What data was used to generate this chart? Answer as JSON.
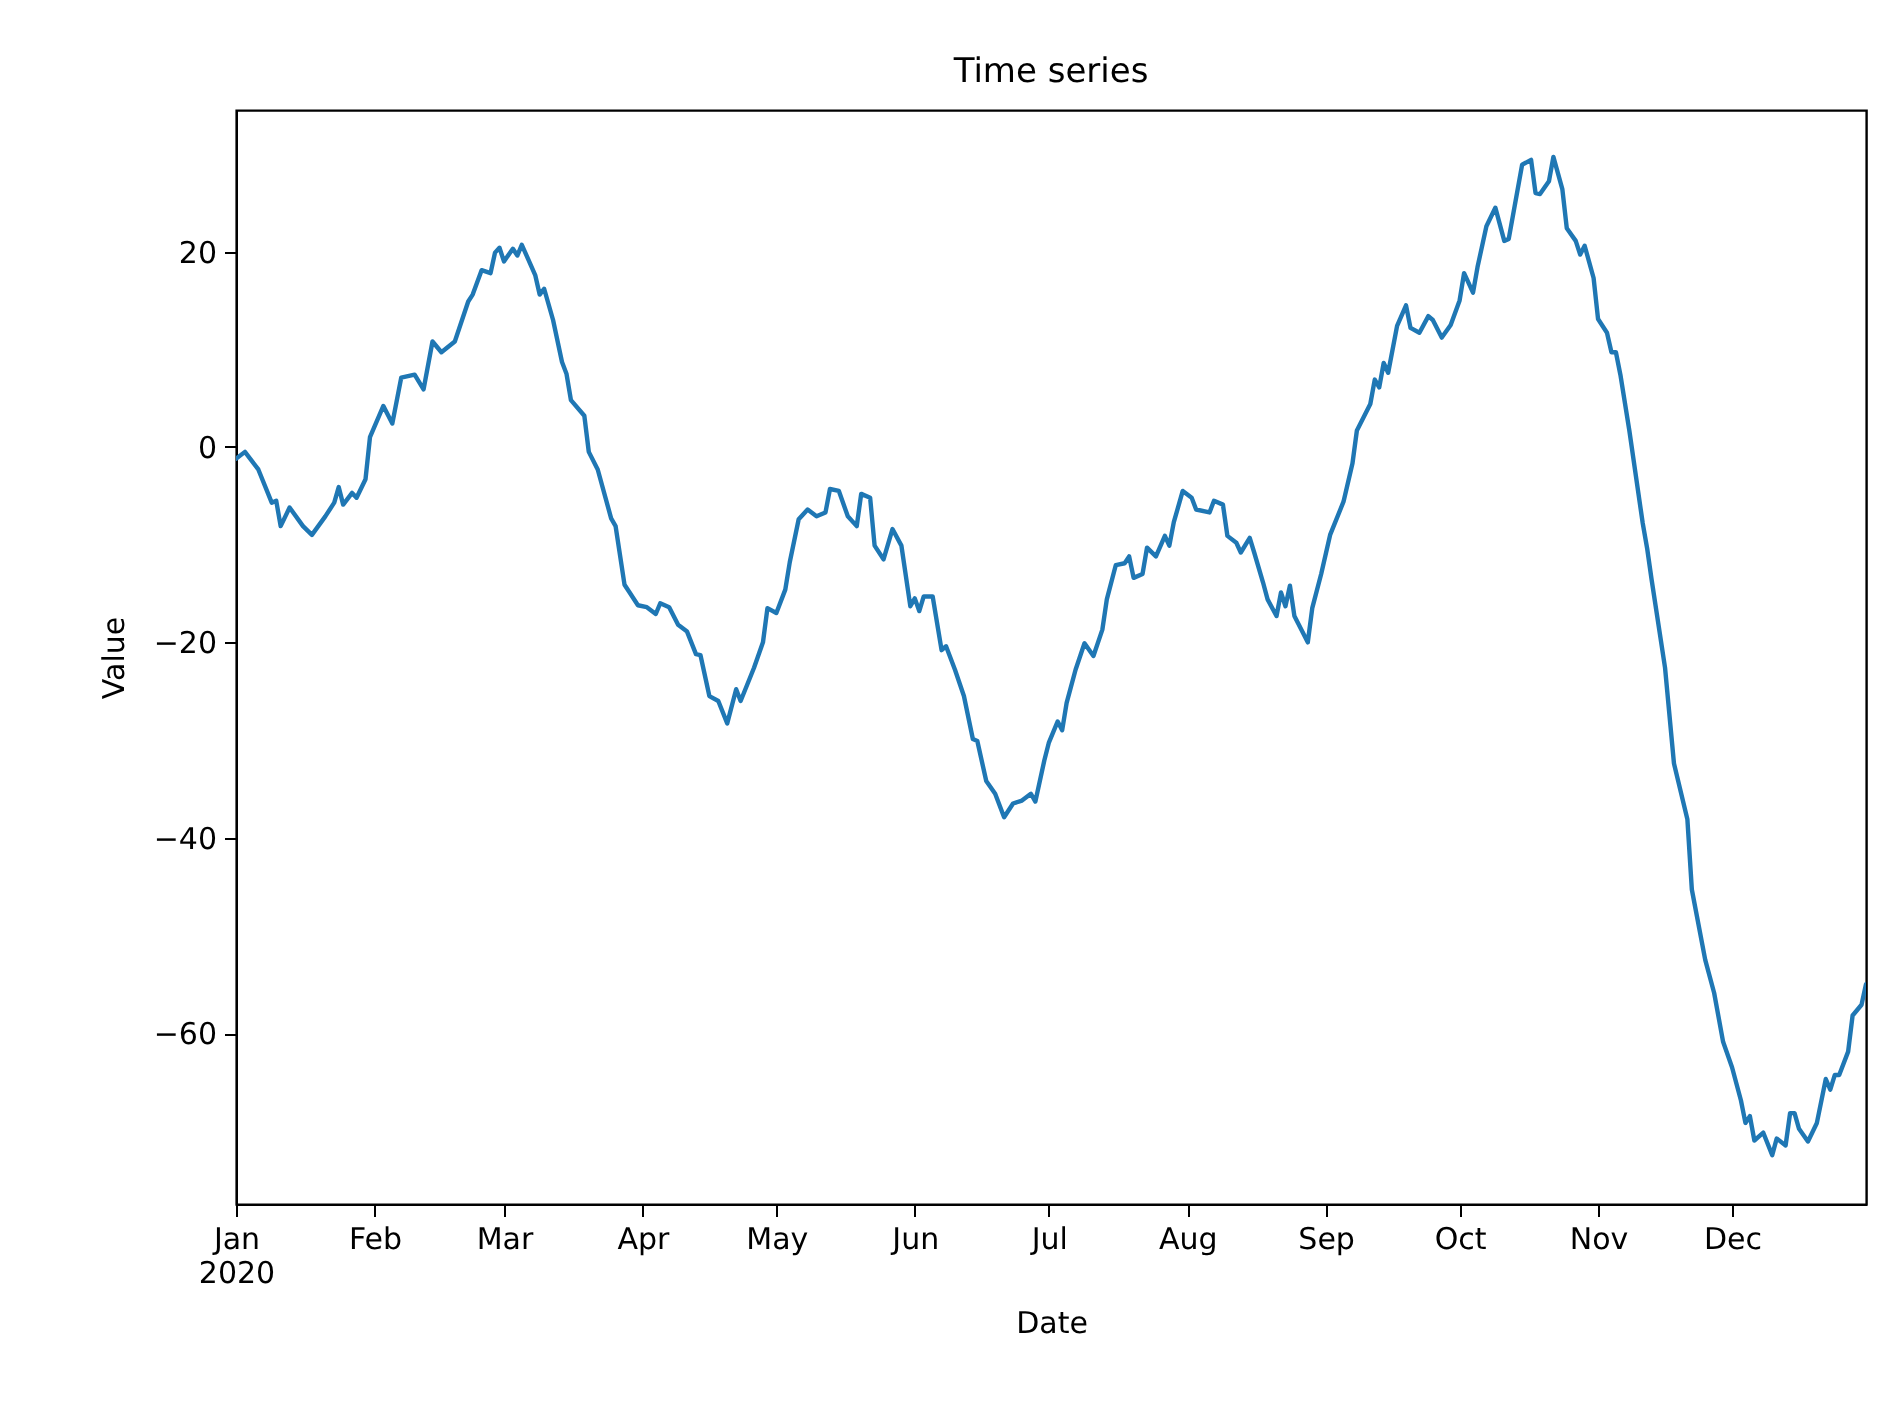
{
  "chart_data": {
    "type": "line",
    "title": "Time series",
    "xlabel": "Date",
    "ylabel": "Value",
    "x": [
      "2020-01-01",
      "2020-01-03",
      "2020-01-06",
      "2020-01-09",
      "2020-01-10",
      "2020-01-11",
      "2020-01-13",
      "2020-01-16",
      "2020-01-18",
      "2020-01-21",
      "2020-01-23",
      "2020-01-24",
      "2020-01-25",
      "2020-01-27",
      "2020-01-28",
      "2020-01-30",
      "2020-01-31",
      "2020-02-03",
      "2020-02-05",
      "2020-02-07",
      "2020-02-10",
      "2020-02-12",
      "2020-02-14",
      "2020-02-16",
      "2020-02-19",
      "2020-02-22",
      "2020-02-23",
      "2020-02-25",
      "2020-02-27",
      "2020-02-28",
      "2020-02-29",
      "2020-03-01",
      "2020-03-03",
      "2020-03-04",
      "2020-03-05",
      "2020-03-08",
      "2020-03-09",
      "2020-03-10",
      "2020-03-12",
      "2020-03-14",
      "2020-03-15",
      "2020-03-16",
      "2020-03-19",
      "2020-03-20",
      "2020-03-22",
      "2020-03-25",
      "2020-03-26",
      "2020-03-28",
      "2020-03-29",
      "2020-03-31",
      "2020-04-02",
      "2020-04-04",
      "2020-04-05",
      "2020-04-07",
      "2020-04-09",
      "2020-04-11",
      "2020-04-13",
      "2020-04-14",
      "2020-04-16",
      "2020-04-18",
      "2020-04-20",
      "2020-04-22",
      "2020-04-23",
      "2020-04-26",
      "2020-04-28",
      "2020-04-29",
      "2020-05-01",
      "2020-05-03",
      "2020-05-04",
      "2020-05-06",
      "2020-05-08",
      "2020-05-10",
      "2020-05-12",
      "2020-05-13",
      "2020-05-15",
      "2020-05-17",
      "2020-05-19",
      "2020-05-20",
      "2020-05-22",
      "2020-05-23",
      "2020-05-25",
      "2020-05-27",
      "2020-05-29",
      "2020-05-31",
      "2020-06-01",
      "2020-06-02",
      "2020-06-03",
      "2020-06-05",
      "2020-06-07",
      "2020-06-08",
      "2020-06-10",
      "2020-06-12",
      "2020-06-14",
      "2020-06-15",
      "2020-06-17",
      "2020-06-19",
      "2020-06-21",
      "2020-06-23",
      "2020-06-25",
      "2020-06-27",
      "2020-06-28",
      "2020-06-30",
      "2020-07-01",
      "2020-07-03",
      "2020-07-04",
      "2020-07-05",
      "2020-07-07",
      "2020-07-09",
      "2020-07-11",
      "2020-07-13",
      "2020-07-14",
      "2020-07-16",
      "2020-07-18",
      "2020-07-19",
      "2020-07-20",
      "2020-07-22",
      "2020-07-23",
      "2020-07-25",
      "2020-07-27",
      "2020-07-28",
      "2020-07-29",
      "2020-07-31",
      "2020-08-02",
      "2020-08-03",
      "2020-08-06",
      "2020-08-07",
      "2020-08-09",
      "2020-08-10",
      "2020-08-12",
      "2020-08-13",
      "2020-08-15",
      "2020-08-16",
      "2020-08-18",
      "2020-08-19",
      "2020-08-21",
      "2020-08-22",
      "2020-08-23",
      "2020-08-24",
      "2020-08-25",
      "2020-08-28",
      "2020-08-29",
      "2020-08-31",
      "2020-09-02",
      "2020-09-05",
      "2020-09-07",
      "2020-09-08",
      "2020-09-11",
      "2020-09-12",
      "2020-09-13",
      "2020-09-14",
      "2020-09-15",
      "2020-09-17",
      "2020-09-19",
      "2020-09-20",
      "2020-09-22",
      "2020-09-24",
      "2020-09-25",
      "2020-09-27",
      "2020-09-29",
      "2020-10-01",
      "2020-10-02",
      "2020-10-04",
      "2020-10-05",
      "2020-10-07",
      "2020-10-09",
      "2020-10-11",
      "2020-10-12",
      "2020-10-15",
      "2020-10-17",
      "2020-10-18",
      "2020-10-19",
      "2020-10-21",
      "2020-10-22",
      "2020-10-24",
      "2020-10-25",
      "2020-10-27",
      "2020-10-28",
      "2020-10-29",
      "2020-10-31",
      "2020-11-01",
      "2020-11-03",
      "2020-11-04",
      "2020-11-05",
      "2020-11-06",
      "2020-11-08",
      "2020-11-11",
      "2020-11-12",
      "2020-11-13",
      "2020-11-16",
      "2020-11-18",
      "2020-11-21",
      "2020-11-22",
      "2020-11-25",
      "2020-11-27",
      "2020-11-29",
      "2020-12-01",
      "2020-12-03",
      "2020-12-04",
      "2020-12-05",
      "2020-12-06",
      "2020-12-08",
      "2020-12-10",
      "2020-12-11",
      "2020-12-13",
      "2020-12-14",
      "2020-12-15",
      "2020-12-16",
      "2020-12-18",
      "2020-12-20",
      "2020-12-22",
      "2020-12-23",
      "2020-12-24",
      "2020-12-25",
      "2020-12-27",
      "2020-12-28",
      "2020-12-30",
      "2020-12-31"
    ],
    "series": [
      {
        "color": "#1f77b4",
        "values": [
          -1.2,
          -0.5,
          -2.3,
          -5.7,
          -5.5,
          -8.1,
          -6.2,
          -8.1,
          -9,
          -7.1,
          -5.7,
          -4.1,
          -5.9,
          -4.7,
          -5.2,
          -3.3,
          1,
          4.2,
          2.4,
          7.1,
          7.4,
          5.9,
          10.8,
          9.7,
          10.8,
          14.9,
          15.6,
          18.1,
          17.8,
          19.9,
          20.4,
          19,
          20.3,
          19.6,
          20.7,
          17.6,
          15.6,
          16.2,
          13,
          8.7,
          7.5,
          4.8,
          3.2,
          -0.5,
          -2.3,
          -7.3,
          -8.1,
          -14.1,
          -14.8,
          -16.2,
          -16.4,
          -17.1,
          -16,
          -16.4,
          -18.2,
          -18.9,
          -21.2,
          -21.3,
          -25.5,
          -26,
          -28.3,
          -24.8,
          -26,
          -22.6,
          -20,
          -16.5,
          -17,
          -14.6,
          -11.8,
          -7.4,
          -6.4,
          -7.1,
          -6.7,
          -4.3,
          -4.5,
          -7.1,
          -8.1,
          -4.8,
          -5.2,
          -10.1,
          -11.5,
          -8.4,
          -10.1,
          -16.3,
          -15.5,
          -16.8,
          -15.3,
          -15.3,
          -20.8,
          -20.4,
          -22.8,
          -25.5,
          -29.9,
          -30.1,
          -34.2,
          -35.5,
          -37.9,
          -36.5,
          -36.2,
          -35.5,
          -36.3,
          -32.1,
          -30.3,
          -28.1,
          -29,
          -26.2,
          -22.8,
          -20.1,
          -21.4,
          -18.7,
          -15.6,
          -12.1,
          -11.9,
          -11.2,
          -13.4,
          -13,
          -10.3,
          -11.2,
          -9.1,
          -10.1,
          -7.7,
          -4.5,
          -5.2,
          -6.4,
          -6.7,
          -5.5,
          -5.9,
          -9.1,
          -9.8,
          -10.8,
          -9.3,
          -10.8,
          -13.9,
          -15.6,
          -17.3,
          -14.9,
          -16.3,
          -14.2,
          -17.3,
          -20,
          -16.5,
          -13,
          -9,
          -5.6,
          -1.7,
          1.7,
          4.4,
          6.9,
          6.1,
          8.6,
          7.6,
          12.4,
          14.5,
          12.2,
          11.7,
          13.4,
          13,
          11.2,
          12.5,
          15,
          17.8,
          15.8,
          18.4,
          22.6,
          24.5,
          21.1,
          21.3,
          28.9,
          29.4,
          26,
          25.9,
          27.2,
          29.7,
          26.4,
          22.4,
          21.1,
          19.7,
          20.6,
          17.3,
          13.1,
          11.7,
          9.7,
          9.7,
          7.4,
          1.7,
          -7.8,
          -10.4,
          -13.6,
          -22.6,
          -32.4,
          -38.1,
          -45.3,
          -52.5,
          -55.9,
          -60.9,
          -63.5,
          -66.9,
          -69.2,
          -68.5,
          -71,
          -70.2,
          -72.5,
          -70.8,
          -71.5,
          -68.2,
          -68.2,
          -69.8,
          -71.1,
          -69.2,
          -64.7,
          -65.8,
          -64.3,
          -64.3,
          -61.9,
          -58.2,
          -57.1,
          -55
        ]
      }
    ],
    "xlim": [
      "2020-01-01",
      "2020-12-31"
    ],
    "xticks": [
      {
        "value": "2020-01-01",
        "label": "Jan\n2020"
      },
      {
        "value": "2020-02-01",
        "label": "Feb"
      },
      {
        "value": "2020-03-01",
        "label": "Mar"
      },
      {
        "value": "2020-04-01",
        "label": "Apr"
      },
      {
        "value": "2020-05-01",
        "label": "May"
      },
      {
        "value": "2020-06-01",
        "label": "Jun"
      },
      {
        "value": "2020-07-01",
        "label": "Jul"
      },
      {
        "value": "2020-08-01",
        "label": "Aug"
      },
      {
        "value": "2020-09-01",
        "label": "Sep"
      },
      {
        "value": "2020-10-01",
        "label": "Oct"
      },
      {
        "value": "2020-11-01",
        "label": "Nov"
      },
      {
        "value": "2020-12-01",
        "label": "Dec"
      }
    ],
    "ylim": [
      -77.5,
      34.5
    ],
    "yticks": [
      {
        "value": -60,
        "label": "−60"
      },
      {
        "value": -40,
        "label": "−40"
      },
      {
        "value": -20,
        "label": "−20"
      },
      {
        "value": 0,
        "label": "0"
      },
      {
        "value": 20,
        "label": "20"
      }
    ],
    "grid": false,
    "marker": "none",
    "line_style": "solid"
  }
}
